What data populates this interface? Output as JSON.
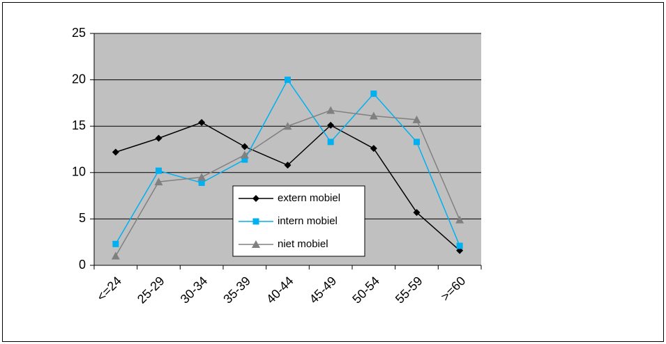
{
  "chart_data": {
    "type": "line",
    "categories": [
      "<=24",
      "25-29",
      "30-34",
      "35-39",
      "40-44",
      "45-49",
      "50-54",
      "55-59",
      ">=60"
    ],
    "series": [
      {
        "name": "extern mobiel",
        "color": "#000000",
        "marker": "diamond",
        "values": [
          12.2,
          13.7,
          15.4,
          12.8,
          10.8,
          15.1,
          12.6,
          5.7,
          1.6
        ]
      },
      {
        "name": "intern mobiel",
        "color": "#00b0f0",
        "marker": "square",
        "values": [
          2.3,
          10.2,
          8.9,
          11.4,
          20.0,
          13.3,
          18.5,
          13.3,
          2.1
        ]
      },
      {
        "name": "niet mobiel",
        "color": "#808080",
        "marker": "triangle",
        "values": [
          1.0,
          9.0,
          9.5,
          11.9,
          15.0,
          16.7,
          16.1,
          15.7,
          4.9
        ]
      }
    ],
    "ylim": [
      0,
      25
    ],
    "yticks": [
      0,
      5,
      10,
      15,
      20,
      25
    ],
    "grid": true,
    "plot_background": "#c0c0c0",
    "legend_position": "center"
  }
}
